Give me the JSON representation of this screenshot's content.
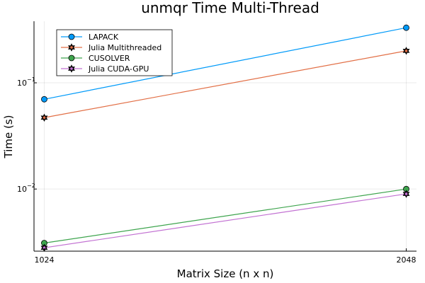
{
  "chart_data": {
    "type": "line",
    "title": "unmqr Time Multi-Thread",
    "xlabel": "Matrix Size (n x n)",
    "ylabel": "Time (s)",
    "x": [
      1024,
      2048
    ],
    "x_tick_labels": [
      "1024",
      "2048"
    ],
    "xlim": [
      995,
      2077
    ],
    "ylim": [
      0.0026,
      0.38
    ],
    "yscale": "log10",
    "y_ticks": [
      {
        "value": 0.01,
        "base": "10",
        "exp": "−2"
      },
      {
        "value": 0.1,
        "base": "10",
        "exp": "−1"
      }
    ],
    "grid": true,
    "legend_position": "top-left",
    "series": [
      {
        "name": "LAPACK",
        "values": [
          0.07,
          0.33
        ],
        "color": "#009af9",
        "marker": "circle"
      },
      {
        "name": "Julia Multithreaded",
        "values": [
          0.047,
          0.2
        ],
        "color": "#e26f46",
        "marker": "star"
      },
      {
        "name": "CUSOLVER",
        "values": [
          0.0031,
          0.01
        ],
        "color": "#3da44d",
        "marker": "circle"
      },
      {
        "name": "Julia CUDA-GPU",
        "values": [
          0.0028,
          0.009
        ],
        "color": "#c271d2",
        "marker": "star"
      }
    ]
  }
}
